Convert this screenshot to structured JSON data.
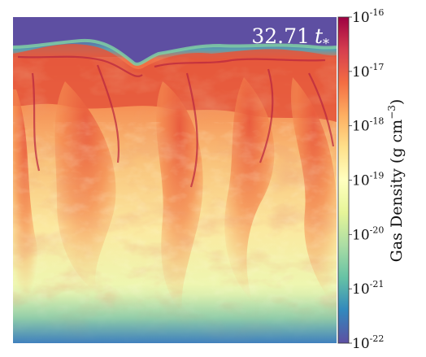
{
  "chart_data": {
    "type": "heatmap",
    "title": "",
    "annotation": {
      "value": "32.71",
      "unit_symbol": "t",
      "unit_subscript": "*"
    },
    "colorbar": {
      "label": "Gas Density (g cm",
      "label_exponent": "−3",
      "label_close": ")",
      "scale": "log",
      "range": [
        1e-22,
        1e-16
      ],
      "ticks": [
        {
          "base": "10",
          "exp": "-16",
          "value": 1e-16
        },
        {
          "base": "10",
          "exp": "-17",
          "value": 1e-17
        },
        {
          "base": "10",
          "exp": "-18",
          "value": 1e-18
        },
        {
          "base": "10",
          "exp": "-19",
          "value": 1e-19
        },
        {
          "base": "10",
          "exp": "-20",
          "value": 1e-20
        },
        {
          "base": "10",
          "exp": "-21",
          "value": 1e-21
        },
        {
          "base": "10",
          "exp": "-22",
          "value": 1e-22
        }
      ],
      "colormap": "Spectral_r",
      "colormap_stops": [
        "#5e4fa2",
        "#3288bd",
        "#66c2a5",
        "#abdda4",
        "#e6f598",
        "#ffffbf",
        "#fee08b",
        "#fdae61",
        "#f46d43",
        "#d53e4f",
        "#9e0142"
      ]
    },
    "grid": false,
    "legend": "none"
  }
}
